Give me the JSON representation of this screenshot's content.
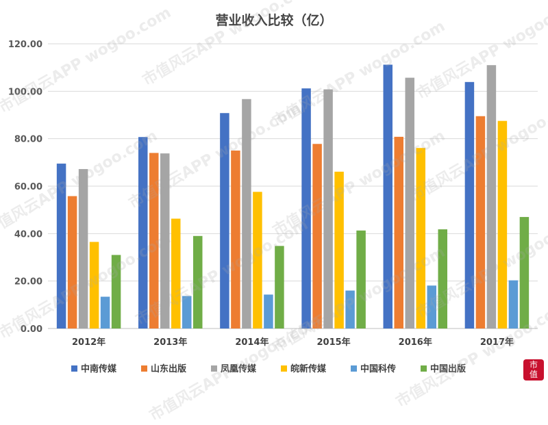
{
  "watermark": "市值风云APP  wogoo.com",
  "chart_data": {
    "type": "bar",
    "title": "营业收入比较（亿）",
    "xlabel": "",
    "ylabel": "",
    "ylim": [
      0,
      120
    ],
    "yticks": [
      "0.00",
      "20.00",
      "40.00",
      "60.00",
      "80.00",
      "100.00",
      "120.00"
    ],
    "grid": true,
    "legend_position": "bottom",
    "categories": [
      "2012年",
      "2013年",
      "2014年",
      "2015年",
      "2016年",
      "2017年"
    ],
    "series": [
      {
        "name": "中南传媒",
        "color": "#4472C4",
        "values": [
          69.5,
          80.7,
          90.8,
          101.2,
          111.2,
          103.9
        ]
      },
      {
        "name": "山东出版",
        "color": "#ED7D31",
        "values": [
          55.8,
          74.0,
          75.0,
          77.8,
          80.8,
          89.5
        ]
      },
      {
        "name": "凤凰传媒",
        "color": "#A5A5A5",
        "values": [
          67.2,
          73.8,
          96.7,
          100.8,
          105.7,
          111.0
        ]
      },
      {
        "name": "皖新传媒",
        "color": "#FFC000",
        "values": [
          36.5,
          46.3,
          57.6,
          66.1,
          76.1,
          87.5
        ]
      },
      {
        "name": "中国科传",
        "color": "#5B9BD5",
        "values": [
          13.4,
          13.7,
          14.3,
          16.0,
          18.1,
          20.3
        ]
      },
      {
        "name": "中国出版",
        "color": "#70AD47",
        "values": [
          31.0,
          39.0,
          34.8,
          41.3,
          41.8,
          47.0
        ]
      }
    ]
  }
}
